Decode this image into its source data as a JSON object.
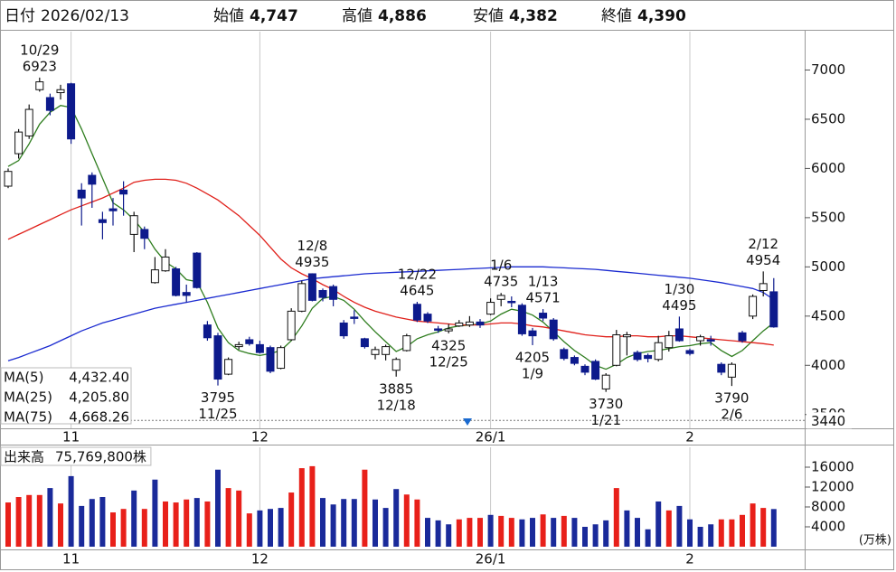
{
  "header": {
    "date_name": "日付",
    "date": "2026/02/13",
    "fields": [
      {
        "name": "始値",
        "value": 4747,
        "label": "4,747",
        "color": "#111111"
      },
      {
        "name": "高値",
        "value": 4886,
        "label": "4,886",
        "color": "#e0201a"
      },
      {
        "name": "安値",
        "value": 4382,
        "label": "4,382",
        "color": "#1f7a1f"
      },
      {
        "name": "終値",
        "value": 4390,
        "label": "4,390",
        "color": "#111111"
      }
    ]
  },
  "chart_data": [
    {
      "type": "candlestick",
      "categories": [
        null,
        null,
        null,
        null,
        null,
        null,
        "11",
        null,
        null,
        null,
        null,
        null,
        null,
        null,
        null,
        null,
        null,
        null,
        null,
        null,
        null,
        null,
        null,
        null,
        "12",
        null,
        null,
        null,
        null,
        null,
        null,
        null,
        null,
        null,
        null,
        null,
        null,
        null,
        null,
        null,
        null,
        null,
        null,
        null,
        null,
        null,
        "26/1",
        null,
        null,
        null,
        null,
        null,
        null,
        null,
        null,
        null,
        null,
        null,
        null,
        null,
        null,
        null,
        null,
        null,
        null,
        "2",
        null,
        null,
        null,
        null,
        null,
        null,
        null,
        null
      ],
      "open": [
        5820,
        6150,
        6330,
        6800,
        6720,
        6770,
        6860,
        5780,
        5930,
        5480,
        5590,
        5780,
        5330,
        5380,
        4840,
        4960,
        4980,
        4740,
        5140,
        4410,
        4300,
        3910,
        4190,
        4260,
        4210,
        4180,
        3970,
        4260,
        4550,
        4930,
        4760,
        4800,
        4430,
        4490,
        4270,
        4110,
        4110,
        3950,
        4150,
        4620,
        4520,
        4370,
        4350,
        4400,
        4410,
        4440,
        4520,
        4670,
        4650,
        4610,
        4350,
        4530,
        4460,
        4160,
        4080,
        3990,
        4040,
        3760,
        4000,
        4290,
        4130,
        4100,
        4060,
        4180,
        4370,
        4150,
        4250,
        4260,
        4010,
        3880,
        4330,
        4500,
        4760,
        4747
      ],
      "high": [
        6000,
        6400,
        6650,
        6923,
        6760,
        6850,
        6870,
        5850,
        5960,
        5560,
        5700,
        5870,
        5560,
        5410,
        5100,
        5180,
        5000,
        4820,
        5150,
        4450,
        4330,
        4080,
        4240,
        4290,
        4250,
        4200,
        4200,
        4580,
        4860,
        4935,
        4780,
        4820,
        4460,
        4560,
        4280,
        4190,
        4210,
        4080,
        4320,
        4645,
        4540,
        4400,
        4420,
        4460,
        4500,
        4470,
        4680,
        4735,
        4700,
        4630,
        4380,
        4571,
        4480,
        4180,
        4100,
        4010,
        4060,
        3920,
        4360,
        4340,
        4150,
        4120,
        4300,
        4350,
        4495,
        4170,
        4310,
        4300,
        4030,
        4030,
        4350,
        4720,
        4954,
        4886
      ],
      "low": [
        5800,
        6100,
        6300,
        6780,
        6540,
        6700,
        6250,
        5420,
        5600,
        5280,
        5420,
        5520,
        5150,
        5180,
        4830,
        4950,
        4700,
        4640,
        4780,
        4250,
        3795,
        3900,
        4160,
        4200,
        4120,
        3920,
        3960,
        4250,
        4540,
        4650,
        4650,
        4600,
        4270,
        4420,
        4170,
        4060,
        4050,
        3885,
        4140,
        4440,
        4430,
        4330,
        4325,
        4390,
        4390,
        4380,
        4510,
        4600,
        4590,
        4300,
        4205,
        4450,
        4250,
        4050,
        4000,
        3900,
        3850,
        3730,
        3990,
        4100,
        4040,
        4030,
        4040,
        4140,
        4240,
        4100,
        4200,
        4200,
        3900,
        3790,
        4230,
        4470,
        4700,
        4382
      ],
      "close": [
        5970,
        6370,
        6600,
        6880,
        6590,
        6800,
        6300,
        5700,
        5840,
        5450,
        5570,
        5740,
        5520,
        5290,
        4970,
        5100,
        4710,
        4710,
        4790,
        4280,
        3860,
        4060,
        4210,
        4220,
        4130,
        3940,
        4180,
        4550,
        4830,
        4660,
        4690,
        4670,
        4300,
        4480,
        4190,
        4160,
        4190,
        4060,
        4300,
        4460,
        4450,
        4360,
        4370,
        4430,
        4440,
        4410,
        4640,
        4710,
        4640,
        4320,
        4300,
        4480,
        4270,
        4070,
        4020,
        3930,
        3860,
        3900,
        4310,
        4310,
        4060,
        4070,
        4230,
        4300,
        4250,
        4120,
        4290,
        4250,
        3930,
        4010,
        4250,
        4700,
        4830,
        4390
      ],
      "up_color": "#ffffff",
      "down_color": "#0d1a8c",
      "edge_color": "#111111",
      "series": [
        {
          "name": "MA(5)",
          "color": "#2e7d1e",
          "value_label": "4,432.40",
          "values": [
            6020,
            6080,
            6250,
            6450,
            6570,
            6640,
            6620,
            6400,
            6150,
            5900,
            5650,
            5580,
            5480,
            5350,
            5180,
            5050,
            4980,
            4870,
            4850,
            4640,
            4380,
            4230,
            4150,
            4120,
            4100,
            4120,
            4150,
            4250,
            4400,
            4580,
            4680,
            4700,
            4660,
            4570,
            4450,
            4340,
            4240,
            4140,
            4190,
            4270,
            4310,
            4340,
            4380,
            4400,
            4410,
            4420,
            4450,
            4520,
            4570,
            4550,
            4510,
            4440,
            4340,
            4240,
            4150,
            4080,
            4000,
            3960,
            4010,
            4080,
            4120,
            4140,
            4150,
            4170,
            4190,
            4200,
            4220,
            4230,
            4150,
            4090,
            4150,
            4250,
            4350,
            4432.4
          ]
        },
        {
          "name": "MA(25)",
          "color": "#e0201a",
          "value_label": "4,205.80",
          "values": [
            5280,
            5330,
            5380,
            5430,
            5480,
            5530,
            5580,
            5620,
            5660,
            5700,
            5750,
            5800,
            5860,
            5880,
            5890,
            5890,
            5880,
            5850,
            5800,
            5740,
            5680,
            5600,
            5520,
            5420,
            5320,
            5200,
            5080,
            4990,
            4930,
            4880,
            4820,
            4770,
            4700,
            4640,
            4590,
            4550,
            4520,
            4490,
            4470,
            4450,
            4440,
            4430,
            4420,
            4410,
            4410,
            4410,
            4420,
            4430,
            4430,
            4420,
            4400,
            4390,
            4370,
            4350,
            4330,
            4310,
            4300,
            4290,
            4290,
            4300,
            4300,
            4290,
            4290,
            4300,
            4300,
            4290,
            4280,
            4270,
            4260,
            4250,
            4240,
            4230,
            4220,
            4205.8
          ]
        },
        {
          "name": "MA(75)",
          "color": "#1a2ad0",
          "value_label": "4,668.26",
          "values": [
            4046,
            4080,
            4120,
            4160,
            4200,
            4250,
            4300,
            4350,
            4390,
            4430,
            4460,
            4490,
            4520,
            4550,
            4580,
            4600,
            4620,
            4640,
            4660,
            4680,
            4700,
            4720,
            4740,
            4760,
            4780,
            4800,
            4820,
            4840,
            4860,
            4880,
            4890,
            4900,
            4910,
            4920,
            4930,
            4935,
            4940,
            4945,
            4950,
            4955,
            4960,
            4965,
            4970,
            4975,
            4980,
            4985,
            4990,
            4995,
            5000,
            5000,
            5000,
            5000,
            4995,
            4990,
            4985,
            4980,
            4975,
            4965,
            4955,
            4945,
            4935,
            4925,
            4915,
            4905,
            4895,
            4885,
            4870,
            4855,
            4840,
            4820,
            4800,
            4780,
            4740,
            4668.26
          ]
        }
      ],
      "ylim": [
        3360,
        7390
      ],
      "yticks": [
        3500,
        4000,
        4500,
        5000,
        5500,
        6000,
        6500,
        7000
      ],
      "reference_line": {
        "value": 3440,
        "color": "#e05020"
      },
      "annotations": [
        {
          "date": "10/29",
          "value": 6923
        },
        {
          "date": "11/25",
          "value": 3795
        },
        {
          "date": "12/8",
          "value": 4935
        },
        {
          "date": "12/18",
          "value": 3885
        },
        {
          "date": "12/22",
          "value": 4645
        },
        {
          "date": "12/25",
          "value": 4325
        },
        {
          "date": "1/6",
          "value": 4735
        },
        {
          "date": "1/9",
          "value": 4205
        },
        {
          "date": "1/13",
          "value": 4571
        },
        {
          "date": "1/21",
          "value": 3730
        },
        {
          "date": "1/30",
          "value": 4495
        },
        {
          "date": "2/6",
          "value": 3790
        },
        {
          "date": "2/12",
          "value": 4954
        }
      ]
    },
    {
      "type": "bar",
      "title": "出来高",
      "total": {
        "value": 7576.98,
        "label": "75,769,800株"
      },
      "unit": "(万株)",
      "categories": [
        null,
        null,
        null,
        null,
        null,
        null,
        "11",
        null,
        null,
        null,
        null,
        null,
        null,
        null,
        null,
        null,
        null,
        null,
        null,
        null,
        null,
        null,
        null,
        null,
        "12",
        null,
        null,
        null,
        null,
        null,
        null,
        null,
        null,
        null,
        null,
        null,
        null,
        null,
        null,
        null,
        null,
        null,
        null,
        null,
        null,
        null,
        "26/1",
        null,
        null,
        null,
        null,
        null,
        null,
        null,
        null,
        null,
        null,
        null,
        null,
        null,
        null,
        null,
        null,
        null,
        null,
        "2",
        null,
        null,
        null,
        null,
        null,
        null,
        null,
        null
      ],
      "values": [
        8900,
        10000,
        10400,
        10400,
        11800,
        8700,
        14200,
        8200,
        9600,
        10000,
        6900,
        7600,
        11300,
        7600,
        13500,
        9100,
        8900,
        9500,
        9800,
        9100,
        15500,
        11800,
        11300,
        6700,
        7300,
        7600,
        7800,
        10900,
        15800,
        16200,
        9800,
        8500,
        9600,
        9600,
        15500,
        9500,
        7800,
        11600,
        10500,
        9500,
        5800,
        5300,
        4500,
        5500,
        5800,
        5800,
        6400,
        6200,
        5800,
        5500,
        5800,
        6500,
        5800,
        6200,
        5800,
        4000,
        4500,
        5300,
        11800,
        7300,
        5800,
        3500,
        9100,
        7300,
        8200,
        5500,
        4000,
        4500,
        5500,
        5500,
        6400,
        8700,
        7800,
        7576.98
      ],
      "colors": [
        "#e8201a",
        "#e8201a",
        "#e8201a",
        "#e8201a",
        "#1a2a9a",
        "#e8201a",
        "#1a2a9a",
        "#1a2a9a",
        "#1a2a9a",
        "#1a2a9a",
        "#e8201a",
        "#e8201a",
        "#1a2a9a",
        "#e8201a",
        "#1a2a9a",
        "#e8201a",
        "#e8201a",
        "#e8201a",
        "#1a2a9a",
        "#e8201a",
        "#1a2a9a",
        "#e8201a",
        "#e8201a",
        "#e8201a",
        "#1a2a9a",
        "#1a2a9a",
        "#1a2a9a",
        "#e8201a",
        "#e8201a",
        "#e8201a",
        "#1a2a9a",
        "#1a2a9a",
        "#1a2a9a",
        "#1a2a9a",
        "#e8201a",
        "#1a2a9a",
        "#1a2a9a",
        "#1a2a9a",
        "#e8201a",
        "#e8201a",
        "#1a2a9a",
        "#1a2a9a",
        "#1a2a9a",
        "#e8201a",
        "#e8201a",
        "#e8201a",
        "#1a2a9a",
        "#e8201a",
        "#e8201a",
        "#1a2a9a",
        "#1a2a9a",
        "#e8201a",
        "#1a2a9a",
        "#e8201a",
        "#1a2a9a",
        "#1a2a9a",
        "#1a2a9a",
        "#1a2a9a",
        "#e8201a",
        "#1a2a9a",
        "#1a2a9a",
        "#1a2a9a",
        "#1a2a9a",
        "#e8201a",
        "#1a2a9a",
        "#1a2a9a",
        "#1a2a9a",
        "#1a2a9a",
        "#e8201a",
        "#e8201a",
        "#e8201a",
        "#e8201a",
        "#e8201a",
        "#1a2a9a"
      ],
      "ylim": [
        0,
        20000
      ],
      "yticks": [
        4000,
        8000,
        12000,
        16000
      ]
    }
  ]
}
